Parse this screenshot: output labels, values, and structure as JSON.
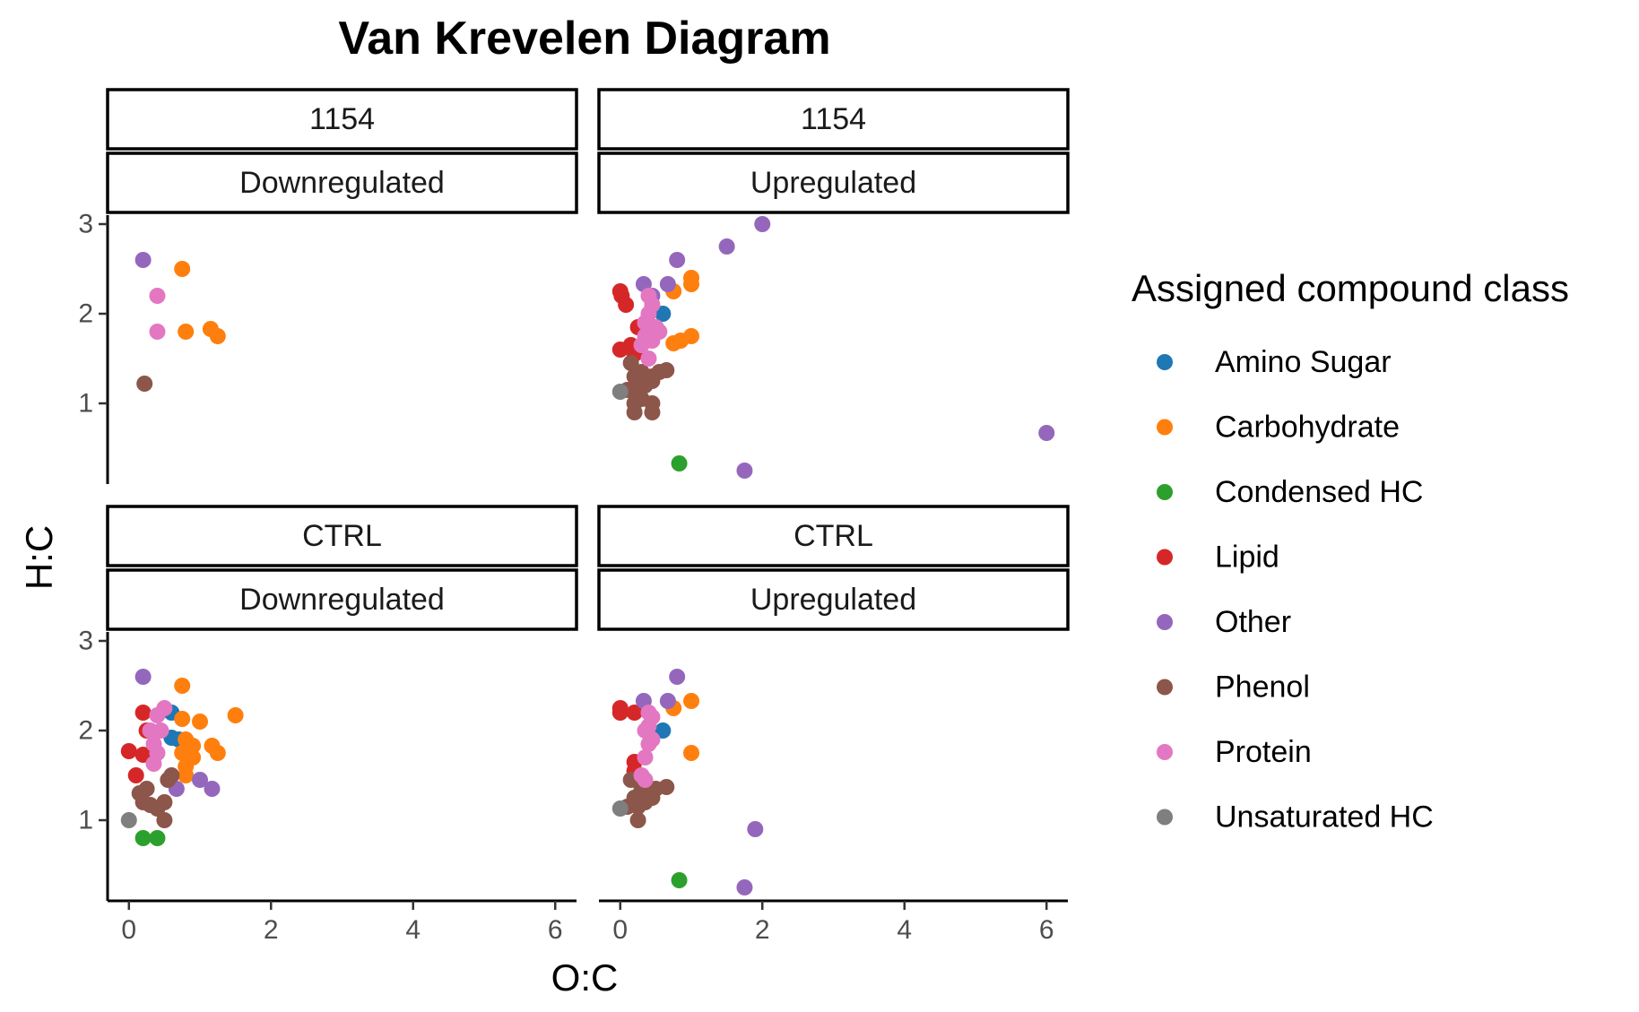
{
  "chart_data": {
    "type": "scatter",
    "title": "Van Krevelen Diagram",
    "xlabel": "O:C",
    "ylabel": "H:C",
    "xlim": [
      -0.3,
      6.3
    ],
    "ylim": [
      0.1,
      3.1
    ],
    "x_ticks": [
      0,
      2,
      4,
      6
    ],
    "y_ticks": [
      1,
      2,
      3
    ],
    "grid": false,
    "legend": {
      "title": "Assigned compound class",
      "position": "right",
      "entries": [
        {
          "name": "Amino Sugar",
          "color": "#1f77b4"
        },
        {
          "name": "Carbohydrate",
          "color": "#ff7f0e"
        },
        {
          "name": "Condensed HC",
          "color": "#2ca02c"
        },
        {
          "name": "Lipid",
          "color": "#d62728"
        },
        {
          "name": "Other",
          "color": "#9467bd"
        },
        {
          "name": "Phenol",
          "color": "#8c564b"
        },
        {
          "name": "Protein",
          "color": "#e377c2"
        },
        {
          "name": "Unsaturated HC",
          "color": "#7f7f7f"
        }
      ]
    },
    "panels": [
      {
        "row": 0,
        "col": 0,
        "strip_top": "1154",
        "strip_bottom": "Downregulated",
        "points": {
          "Other": [
            [
              0.2,
              2.6
            ]
          ],
          "Carbohydrate": [
            [
              0.75,
              2.5
            ],
            [
              0.8,
              1.8
            ],
            [
              1.15,
              1.83
            ],
            [
              1.25,
              1.75
            ]
          ],
          "Protein": [
            [
              0.4,
              2.2
            ],
            [
              0.4,
              1.8
            ]
          ],
          "Phenol": [
            [
              0.22,
              1.22
            ]
          ]
        }
      },
      {
        "row": 0,
        "col": 1,
        "strip_top": "1154",
        "strip_bottom": "Upregulated",
        "points": {
          "Other": [
            [
              2.0,
              3.0
            ],
            [
              1.5,
              2.75
            ],
            [
              0.8,
              2.6
            ],
            [
              0.33,
              2.33
            ],
            [
              0.67,
              2.33
            ],
            [
              0.45,
              2.2
            ],
            [
              6.0,
              0.67
            ],
            [
              1.75,
              0.25
            ]
          ],
          "Carbohydrate": [
            [
              1.0,
              2.4
            ],
            [
              1.0,
              2.33
            ],
            [
              0.75,
              2.25
            ],
            [
              1.0,
              1.75
            ],
            [
              0.85,
              1.7
            ],
            [
              0.75,
              1.67
            ]
          ],
          "Lipid": [
            [
              0.0,
              2.25
            ],
            [
              0.02,
              2.2
            ],
            [
              0.08,
              2.1
            ],
            [
              0.0,
              1.6
            ],
            [
              0.15,
              1.65
            ],
            [
              0.25,
              1.85
            ],
            [
              0.2,
              1.55
            ]
          ],
          "Amino Sugar": [
            [
              0.6,
              2.0
            ],
            [
              0.5,
              1.85
            ]
          ],
          "Protein": [
            [
              0.4,
              2.2
            ],
            [
              0.45,
              2.1
            ],
            [
              0.4,
              2.0
            ],
            [
              0.35,
              1.9
            ],
            [
              0.5,
              1.85
            ],
            [
              0.55,
              1.8
            ],
            [
              0.45,
              1.7
            ],
            [
              0.35,
              1.75
            ],
            [
              0.4,
              1.5
            ],
            [
              0.3,
              1.65
            ]
          ],
          "Phenol": [
            [
              0.15,
              1.45
            ],
            [
              0.2,
              1.3
            ],
            [
              0.3,
              1.35
            ],
            [
              0.45,
              1.3
            ],
            [
              0.55,
              1.35
            ],
            [
              0.65,
              1.37
            ],
            [
              0.1,
              1.15
            ],
            [
              0.25,
              1.15
            ],
            [
              0.35,
              1.2
            ],
            [
              0.45,
              1.25
            ],
            [
              0.3,
              1.05
            ],
            [
              0.2,
              1.0
            ],
            [
              0.45,
              1.0
            ],
            [
              0.2,
              0.9
            ],
            [
              0.45,
              0.9
            ]
          ],
          "Unsaturated HC": [
            [
              0.0,
              1.13
            ]
          ],
          "Condensed HC": [
            [
              0.83,
              0.33
            ]
          ]
        }
      },
      {
        "row": 1,
        "col": 0,
        "strip_top": "CTRL",
        "strip_bottom": "Downregulated",
        "points": {
          "Other": [
            [
              0.2,
              2.6
            ],
            [
              1.0,
              1.45
            ],
            [
              1.17,
              1.35
            ],
            [
              0.67,
              1.35
            ]
          ],
          "Carbohydrate": [
            [
              0.75,
              2.5
            ],
            [
              0.75,
              2.13
            ],
            [
              1.0,
              2.1
            ],
            [
              1.5,
              2.17
            ],
            [
              0.8,
              1.9
            ],
            [
              0.9,
              1.83
            ],
            [
              0.75,
              1.75
            ],
            [
              0.9,
              1.7
            ],
            [
              1.17,
              1.83
            ],
            [
              1.25,
              1.75
            ],
            [
              0.8,
              1.6
            ],
            [
              0.8,
              1.5
            ]
          ],
          "Lipid": [
            [
              0.2,
              2.2
            ],
            [
              0.25,
              2.0
            ],
            [
              0.0,
              1.77
            ],
            [
              0.2,
              1.73
            ],
            [
              0.1,
              1.5
            ]
          ],
          "Amino Sugar": [
            [
              0.6,
              2.2
            ],
            [
              0.6,
              1.92
            ],
            [
              0.7,
              1.9
            ]
          ],
          "Protein": [
            [
              0.5,
              2.25
            ],
            [
              0.4,
              2.17
            ],
            [
              0.3,
              2.0
            ],
            [
              0.45,
              2.0
            ],
            [
              0.35,
              1.85
            ],
            [
              0.4,
              1.75
            ],
            [
              0.35,
              1.63
            ]
          ],
          "Phenol": [
            [
              0.25,
              1.35
            ],
            [
              0.15,
              1.3
            ],
            [
              0.2,
              1.2
            ],
            [
              0.3,
              1.17
            ],
            [
              0.4,
              1.13
            ],
            [
              0.5,
              1.2
            ],
            [
              0.55,
              1.45
            ],
            [
              0.6,
              1.5
            ],
            [
              0.5,
              1.0
            ]
          ],
          "Unsaturated HC": [
            [
              0.0,
              1.0
            ]
          ],
          "Condensed HC": [
            [
              0.2,
              0.8
            ],
            [
              0.4,
              0.8
            ]
          ]
        }
      },
      {
        "row": 1,
        "col": 1,
        "strip_top": "CTRL",
        "strip_bottom": "Upregulated",
        "points": {
          "Other": [
            [
              0.8,
              2.6
            ],
            [
              0.33,
              2.33
            ],
            [
              0.67,
              2.33
            ],
            [
              1.9,
              0.9
            ],
            [
              1.75,
              0.25
            ]
          ],
          "Carbohydrate": [
            [
              1.0,
              2.33
            ],
            [
              0.75,
              2.25
            ],
            [
              1.0,
              1.75
            ]
          ],
          "Lipid": [
            [
              0.0,
              2.25
            ],
            [
              0.0,
              2.2
            ],
            [
              0.2,
              2.2
            ],
            [
              0.2,
              1.65
            ],
            [
              0.2,
              1.55
            ]
          ],
          "Amino Sugar": [
            [
              0.6,
              2.0
            ]
          ],
          "Protein": [
            [
              0.4,
              2.2
            ],
            [
              0.45,
              2.15
            ],
            [
              0.4,
              2.05
            ],
            [
              0.35,
              2.0
            ],
            [
              0.45,
              1.9
            ],
            [
              0.4,
              1.85
            ],
            [
              0.35,
              1.7
            ],
            [
              0.3,
              1.5
            ],
            [
              0.35,
              1.45
            ]
          ],
          "Phenol": [
            [
              0.15,
              1.45
            ],
            [
              0.3,
              1.35
            ],
            [
              0.5,
              1.35
            ],
            [
              0.65,
              1.37
            ],
            [
              0.2,
              1.25
            ],
            [
              0.35,
              1.2
            ],
            [
              0.45,
              1.25
            ],
            [
              0.1,
              1.15
            ],
            [
              0.25,
              1.15
            ],
            [
              0.25,
              1.0
            ]
          ],
          "Unsaturated HC": [
            [
              0.0,
              1.13
            ]
          ],
          "Condensed HC": [
            [
              0.83,
              0.33
            ]
          ]
        }
      }
    ]
  }
}
